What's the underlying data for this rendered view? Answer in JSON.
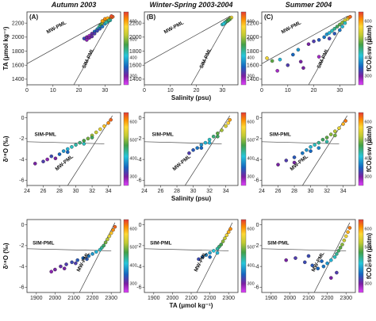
{
  "chart_data": {
    "type": "scatter",
    "colorbar": {
      "label": "fCO₂-sw (μatm)",
      "ticks": [
        "300",
        "400",
        "500",
        "600"
      ],
      "range": [
        250,
        650
      ]
    },
    "column_titles": [
      "Autumn 2003",
      "Winter-Spring 2003-2004",
      "Summer 2004"
    ],
    "panel_letters": [
      "(A)",
      "(B)",
      "(C)"
    ],
    "rows": [
      {
        "ylabel": "TA (μmol kg⁻¹)",
        "xlabel": "Salinity (psu)",
        "xlim": [
          0,
          36
        ],
        "ylim": [
          1320,
          2360
        ],
        "xticks": [
          "0",
          "10",
          "20",
          "30"
        ],
        "yticks": [
          "1400",
          "1600",
          "1800",
          "2000",
          "2200"
        ],
        "xtick_values": [
          0,
          10,
          20,
          30
        ],
        "ytick_values": [
          1400,
          1600,
          1800,
          2000,
          2200
        ],
        "annotations": [
          "MW-PML",
          "SIM-PML"
        ]
      },
      {
        "ylabel": "δ¹⁸O (‰)",
        "xlabel": "Salinity (psu)",
        "xlim": [
          24,
          35.5
        ],
        "ylim": [
          -6.5,
          0.5
        ],
        "xticks": [
          "24",
          "26",
          "28",
          "30",
          "32",
          "34"
        ],
        "yticks": [
          "-6",
          "-4",
          "-2",
          "0"
        ],
        "xtick_values": [
          24,
          26,
          28,
          30,
          32,
          34
        ],
        "ytick_values": [
          -6,
          -4,
          -2,
          0
        ],
        "annotations": [
          "SIM-PML",
          "MW-PML"
        ]
      },
      {
        "ylabel": "δ¹⁸O (‰)",
        "xlabel": "TA (μmol kg⁻¹)",
        "xlim": [
          1850,
          2350
        ],
        "ylim": [
          -6.5,
          0.5
        ],
        "xticks": [
          "1900",
          "2000",
          "2100",
          "2200",
          "2300"
        ],
        "yticks": [
          "-6",
          "-4",
          "-2",
          "0"
        ],
        "xtick_values": [
          1900,
          2000,
          2100,
          2200,
          2300
        ],
        "ytick_values": [
          -6,
          -4,
          -2,
          0
        ],
        "annotations": [
          "SIM-PML",
          "MW-PML"
        ]
      }
    ],
    "mixing_lines": {
      "row1": {
        "mw": [
          [
            0,
            1620
          ],
          [
            33,
            2300
          ]
        ],
        "sim": [
          [
            18,
            1320
          ],
          [
            33,
            2300
          ]
        ]
      },
      "row2": {
        "sim": [
          [
            24,
            -2.3
          ],
          [
            33.5,
            -2.5
          ]
        ],
        "mw": [
          [
            29,
            -6.5
          ],
          [
            34.5,
            0.2
          ]
        ]
      },
      "row3": {
        "sim": [
          [
            1850,
            -2.3
          ],
          [
            2300,
            -2.5
          ]
        ],
        "mw": [
          [
            2130,
            -6.5
          ],
          [
            2320,
            0.2
          ]
        ]
      }
    },
    "series": [
      {
        "row": 1,
        "col": 1,
        "points": [
          [
            22,
            1980,
            330
          ],
          [
            23,
            2000,
            300
          ],
          [
            24,
            2020,
            280
          ],
          [
            25,
            2050,
            310
          ],
          [
            26,
            2080,
            350
          ],
          [
            27,
            2110,
            380
          ],
          [
            27.5,
            2130,
            420
          ],
          [
            28,
            2160,
            440
          ],
          [
            28.5,
            2180,
            470
          ],
          [
            29,
            2200,
            500
          ],
          [
            29.5,
            2210,
            520
          ],
          [
            30,
            2220,
            540
          ],
          [
            30.5,
            2240,
            560
          ],
          [
            31,
            2250,
            580
          ],
          [
            31.5,
            2260,
            600
          ],
          [
            32,
            2270,
            610
          ],
          [
            32.5,
            2280,
            620
          ],
          [
            33,
            2290,
            630
          ],
          [
            32,
            2240,
            420
          ],
          [
            31,
            2220,
            400
          ],
          [
            30,
            2190,
            380
          ],
          [
            29,
            2150,
            360
          ],
          [
            28,
            2120,
            340
          ],
          [
            27,
            2090,
            330
          ],
          [
            26,
            2050,
            320
          ],
          [
            25,
            2010,
            310
          ],
          [
            24,
            1990,
            300
          ],
          [
            23,
            1960,
            290
          ],
          [
            29,
            2230,
            600
          ],
          [
            30,
            2260,
            610
          ],
          [
            31,
            2270,
            590
          ],
          [
            32.5,
            2300,
            640
          ],
          [
            31.5,
            2240,
            450
          ],
          [
            30.5,
            2210,
            430
          ]
        ]
      },
      {
        "row": 1,
        "col": 2,
        "points": [
          [
            30,
            2180,
            420
          ],
          [
            31,
            2200,
            450
          ],
          [
            31.5,
            2220,
            480
          ],
          [
            32,
            2240,
            500
          ],
          [
            32.5,
            2250,
            520
          ],
          [
            33,
            2270,
            540
          ],
          [
            33.5,
            2280,
            560
          ],
          [
            32,
            2230,
            460
          ],
          [
            31,
            2210,
            430
          ],
          [
            30.5,
            2190,
            410
          ],
          [
            33,
            2260,
            500
          ],
          [
            32.5,
            2245,
            470
          ]
        ]
      },
      {
        "row": 1,
        "col": 3,
        "points": [
          [
            2,
            1700,
            560
          ],
          [
            4,
            1660,
            480
          ],
          [
            7,
            1680,
            400
          ],
          [
            10,
            1600,
            320
          ],
          [
            12,
            1750,
            350
          ],
          [
            14,
            1820,
            380
          ],
          [
            16,
            1560,
            300
          ],
          [
            18,
            1900,
            300
          ],
          [
            20,
            1940,
            320
          ],
          [
            22,
            1960,
            340
          ],
          [
            24,
            2000,
            360
          ],
          [
            25,
            2040,
            380
          ],
          [
            26,
            2060,
            400
          ],
          [
            27,
            2090,
            420
          ],
          [
            28,
            2120,
            440
          ],
          [
            29,
            2150,
            460
          ],
          [
            30,
            2180,
            480
          ],
          [
            31,
            2210,
            500
          ],
          [
            32,
            2240,
            530
          ],
          [
            33,
            2260,
            560
          ],
          [
            33.5,
            2280,
            600
          ],
          [
            34,
            2290,
            630
          ],
          [
            26,
            1980,
            320
          ],
          [
            28,
            2050,
            340
          ],
          [
            30,
            2100,
            360
          ],
          [
            31,
            2150,
            400
          ],
          [
            32,
            2200,
            420
          ],
          [
            22,
            1720,
            280
          ],
          [
            15,
            1650,
            300
          ],
          [
            6,
            1520,
            280
          ]
        ]
      },
      {
        "row": 2,
        "col": 1,
        "points": [
          [
            25,
            -4.4,
            300
          ],
          [
            26,
            -4.2,
            320
          ],
          [
            26.5,
            -4,
            290
          ],
          [
            27,
            -3.7,
            330
          ],
          [
            28,
            -3.5,
            350
          ],
          [
            28.5,
            -3.2,
            380
          ],
          [
            29,
            -3,
            400
          ],
          [
            29.5,
            -2.8,
            420
          ],
          [
            30,
            -2.6,
            430
          ],
          [
            30.5,
            -2.4,
            450
          ],
          [
            31,
            -2.2,
            470
          ],
          [
            31.5,
            -2,
            490
          ],
          [
            32,
            -1.7,
            510
          ],
          [
            32.5,
            -1.4,
            530
          ],
          [
            33,
            -1.1,
            550
          ],
          [
            33.5,
            -0.8,
            580
          ],
          [
            34,
            -0.5,
            610
          ],
          [
            34.3,
            -0.2,
            630
          ],
          [
            27.5,
            -3.9,
            300
          ],
          [
            29,
            -3.3,
            350
          ],
          [
            31,
            -2.5,
            420
          ],
          [
            32,
            -1.9,
            460
          ]
        ]
      },
      {
        "row": 2,
        "col": 2,
        "points": [
          [
            29.5,
            -3.4,
            320
          ],
          [
            30,
            -3.1,
            340
          ],
          [
            30.5,
            -2.9,
            360
          ],
          [
            31,
            -2.6,
            380
          ],
          [
            31.5,
            -2.4,
            400
          ],
          [
            32,
            -2.1,
            420
          ],
          [
            32.5,
            -1.8,
            450
          ],
          [
            33,
            -1.5,
            480
          ],
          [
            33.5,
            -1.2,
            510
          ],
          [
            34,
            -0.8,
            540
          ],
          [
            34.3,
            -0.5,
            570
          ],
          [
            34.5,
            -0.2,
            600
          ],
          [
            31,
            -2.9,
            350
          ],
          [
            32,
            -2.4,
            400
          ],
          [
            33,
            -1.8,
            460
          ]
        ]
      },
      {
        "row": 2,
        "col": 3,
        "points": [
          [
            26,
            -4.5,
            300
          ],
          [
            27,
            -4.1,
            320
          ],
          [
            28,
            -3.8,
            340
          ],
          [
            29,
            -3.4,
            360
          ],
          [
            29.5,
            -3.1,
            380
          ],
          [
            30,
            -2.8,
            400
          ],
          [
            30.5,
            -2.6,
            420
          ],
          [
            31,
            -2.4,
            440
          ],
          [
            31.5,
            -2.1,
            460
          ],
          [
            32,
            -1.9,
            480
          ],
          [
            32.5,
            -1.6,
            500
          ],
          [
            33,
            -1.3,
            520
          ],
          [
            33.5,
            -1,
            550
          ],
          [
            34,
            -0.6,
            590
          ],
          [
            34.3,
            -0.3,
            620
          ],
          [
            30,
            -3.2,
            350
          ],
          [
            31,
            -2.9,
            370
          ],
          [
            32,
            -2.3,
            430
          ],
          [
            33,
            -1.7,
            490
          ],
          [
            28,
            -4.3,
            300
          ]
        ]
      },
      {
        "row": 3,
        "col": 1,
        "points": [
          [
            1980,
            -4.5,
            290
          ],
          [
            2000,
            -4.3,
            300
          ],
          [
            2030,
            -4,
            310
          ],
          [
            2060,
            -3.8,
            320
          ],
          [
            2090,
            -3.6,
            330
          ],
          [
            2120,
            -3.4,
            340
          ],
          [
            2150,
            -3.2,
            350
          ],
          [
            2180,
            -3,
            360
          ],
          [
            2200,
            -2.8,
            380
          ],
          [
            2220,
            -2.6,
            400
          ],
          [
            2240,
            -2.4,
            420
          ],
          [
            2250,
            -2.2,
            440
          ],
          [
            2260,
            -2,
            460
          ],
          [
            2270,
            -1.7,
            490
          ],
          [
            2280,
            -1.4,
            520
          ],
          [
            2290,
            -1.1,
            550
          ],
          [
            2300,
            -0.8,
            580
          ],
          [
            2310,
            -0.5,
            610
          ],
          [
            2320,
            -0.2,
            630
          ],
          [
            2050,
            -4.2,
            300
          ],
          [
            2110,
            -3.7,
            320
          ],
          [
            2170,
            -3.3,
            340
          ]
        ]
      },
      {
        "row": 3,
        "col": 2,
        "points": [
          [
            2140,
            -3.3,
            330
          ],
          [
            2160,
            -3.1,
            350
          ],
          [
            2180,
            -2.9,
            370
          ],
          [
            2200,
            -2.7,
            390
          ],
          [
            2220,
            -2.5,
            410
          ],
          [
            2240,
            -2.3,
            430
          ],
          [
            2250,
            -2.1,
            450
          ],
          [
            2260,
            -1.9,
            470
          ],
          [
            2270,
            -1.6,
            500
          ],
          [
            2280,
            -1.3,
            530
          ],
          [
            2290,
            -1,
            560
          ],
          [
            2300,
            -0.7,
            590
          ],
          [
            2310,
            -0.4,
            610
          ],
          [
            2200,
            -3.1,
            350
          ],
          [
            2240,
            -2.7,
            400
          ]
        ]
      },
      {
        "row": 3,
        "col": 3,
        "points": [
          [
            1980,
            -3.4,
            300
          ],
          [
            2030,
            -3.2,
            320
          ],
          [
            2080,
            -3.6,
            330
          ],
          [
            2120,
            -3.9,
            340
          ],
          [
            2150,
            -4.2,
            350
          ],
          [
            2180,
            -4,
            360
          ],
          [
            2200,
            -3.7,
            380
          ],
          [
            2220,
            -3.4,
            400
          ],
          [
            2240,
            -3.1,
            420
          ],
          [
            2250,
            -2.8,
            440
          ],
          [
            2260,
            -2.5,
            460
          ],
          [
            2270,
            -2.2,
            480
          ],
          [
            2280,
            -1.9,
            500
          ],
          [
            2290,
            -1.5,
            530
          ],
          [
            2300,
            -1.1,
            560
          ],
          [
            2310,
            -0.7,
            590
          ],
          [
            2320,
            -0.3,
            620
          ],
          [
            2250,
            -4.6,
            320
          ],
          [
            2220,
            -5.1,
            300
          ],
          [
            2100,
            -3,
            330
          ],
          [
            2170,
            -3.5,
            350
          ]
        ]
      }
    ]
  }
}
